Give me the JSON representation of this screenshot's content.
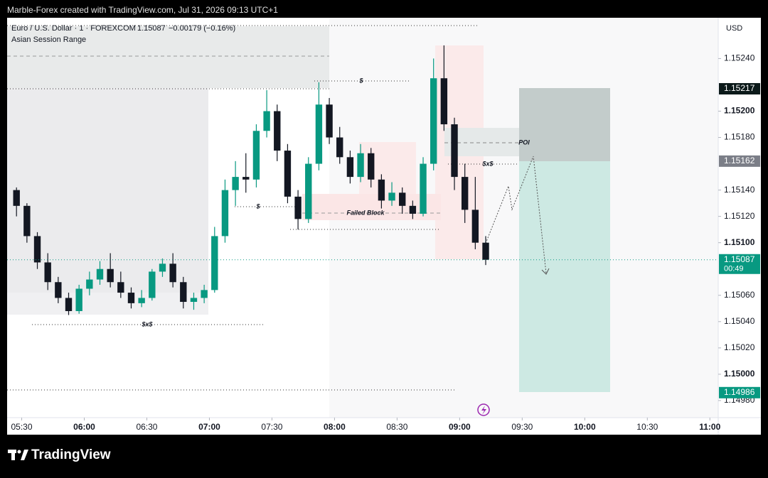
{
  "header": {
    "attribution": "Marble-Forex created with TradingView.com, Jul 31, 2026 09:13 UTC+1"
  },
  "chart_data": {
    "type": "candlestick",
    "symbol": "Euro / U.S. Dollar · 1 · FOREXCOM",
    "last": 1.15087,
    "change": "−0.00179 (−0.16%)",
    "indicator": "Asian Session Range",
    "currency": "USD",
    "x": [
      "05:25",
      "05:30",
      "05:35",
      "05:40",
      "05:45",
      "05:50",
      "05:55",
      "06:00",
      "06:05",
      "06:10",
      "06:15",
      "06:20",
      "06:25",
      "06:30",
      "06:35",
      "06:40",
      "06:45",
      "06:50",
      "06:55",
      "07:00",
      "07:05",
      "07:10",
      "07:15",
      "07:20",
      "07:25",
      "07:30",
      "07:35",
      "07:40",
      "07:45",
      "07:50",
      "07:55",
      "08:00",
      "08:05",
      "08:10",
      "08:15",
      "08:20",
      "08:25",
      "08:30",
      "08:35",
      "08:40",
      "08:45",
      "08:50",
      "08:55",
      "09:00",
      "09:05",
      "09:10"
    ],
    "open": [
      1.1514,
      1.15128,
      1.15105,
      1.15085,
      1.1507,
      1.15058,
      1.15048,
      1.15065,
      1.15072,
      1.1508,
      1.1507,
      1.15062,
      1.15054,
      1.15058,
      1.15078,
      1.15084,
      1.1507,
      1.15055,
      1.15058,
      1.15064,
      1.15105,
      1.1514,
      1.1515,
      1.15148,
      1.15185,
      1.152,
      1.1517,
      1.15135,
      1.15118,
      1.1516,
      1.15205,
      1.1518,
      1.15165,
      1.1515,
      1.15168,
      1.15148,
      1.15132,
      1.15138,
      1.15128,
      1.15122,
      1.1516,
      1.15225,
      1.1519,
      1.1515,
      1.15125,
      1.151
    ],
    "high": [
      1.15142,
      1.1513,
      1.15108,
      1.15092,
      1.15074,
      1.15062,
      1.15068,
      1.15078,
      1.15086,
      1.15092,
      1.15078,
      1.15066,
      1.15064,
      1.1508,
      1.15088,
      1.15092,
      1.15074,
      1.15062,
      1.15068,
      1.15112,
      1.15148,
      1.15162,
      1.15168,
      1.1519,
      1.15216,
      1.15205,
      1.15175,
      1.1514,
      1.15165,
      1.15222,
      1.1521,
      1.15188,
      1.1517,
      1.15175,
      1.15172,
      1.15152,
      1.15146,
      1.15142,
      1.15132,
      1.15165,
      1.1524,
      1.1525,
      1.15195,
      1.1516,
      1.1515,
      1.15105
    ],
    "low": [
      1.1512,
      1.151,
      1.1508,
      1.15064,
      1.15054,
      1.15045,
      1.15046,
      1.1506,
      1.15068,
      1.15066,
      1.15058,
      1.1505,
      1.15051,
      1.15056,
      1.15074,
      1.15066,
      1.1505,
      1.15049,
      1.15054,
      1.15062,
      1.151,
      1.15128,
      1.15138,
      1.15142,
      1.1518,
      1.15162,
      1.1513,
      1.1511,
      1.15115,
      1.15155,
      1.15175,
      1.1516,
      1.15145,
      1.15146,
      1.15142,
      1.15126,
      1.15128,
      1.15122,
      1.15118,
      1.1512,
      1.15155,
      1.15185,
      1.1514,
      1.15115,
      1.15095,
      1.15083
    ],
    "close": [
      1.15128,
      1.15105,
      1.15085,
      1.1507,
      1.15058,
      1.15048,
      1.15065,
      1.15072,
      1.1508,
      1.1507,
      1.15062,
      1.15054,
      1.15058,
      1.15078,
      1.15084,
      1.1507,
      1.15055,
      1.15058,
      1.15064,
      1.15105,
      1.1514,
      1.1515,
      1.15148,
      1.15185,
      1.152,
      1.1517,
      1.15135,
      1.15118,
      1.1516,
      1.15205,
      1.1518,
      1.15165,
      1.1515,
      1.15168,
      1.15148,
      1.15132,
      1.15138,
      1.15128,
      1.15122,
      1.1516,
      1.15225,
      1.1519,
      1.1515,
      1.15125,
      1.151,
      1.15087
    ],
    "up_color": "#089981",
    "down_color": "#131722",
    "xlim": [
      "05:23",
      "11:04"
    ],
    "xticks": [
      "05:30",
      "06:00",
      "06:30",
      "07:00",
      "07:30",
      "08:00",
      "08:30",
      "09:00",
      "09:30",
      "10:00",
      "10:30",
      "11:00"
    ],
    "ylim": [
      1.14967,
      1.15271
    ],
    "yticks": [
      {
        "value": 1.1498,
        "label": "1.14980"
      },
      {
        "value": 1.15,
        "label": "1.15000"
      },
      {
        "value": 1.1502,
        "label": "1.15020"
      },
      {
        "value": 1.1504,
        "label": "1.15040"
      },
      {
        "value": 1.1506,
        "label": "1.15060"
      },
      {
        "value": 1.151,
        "label": "1.15100"
      },
      {
        "value": 1.1512,
        "label": "1.15120"
      },
      {
        "value": 1.1514,
        "label": "1.15140"
      },
      {
        "value": 1.1518,
        "label": "1.15180"
      },
      {
        "value": 1.152,
        "label": "1.15200"
      },
      {
        "value": 1.1524,
        "label": "1.15240"
      }
    ],
    "price_tags": [
      {
        "value": 1.15217,
        "color": "#0c1a1a"
      },
      {
        "value": 1.15162,
        "color": "#7b7e87"
      },
      {
        "value": 1.14986,
        "color": "#089981"
      }
    ],
    "last_price": {
      "value": 1.15087,
      "countdown": "00:49",
      "color": "#089981"
    },
    "annotations": [
      "$",
      "$",
      "$x$",
      "Failed Block",
      "POI",
      "$x$"
    ]
  },
  "footer": {
    "brand": "TradingView"
  }
}
